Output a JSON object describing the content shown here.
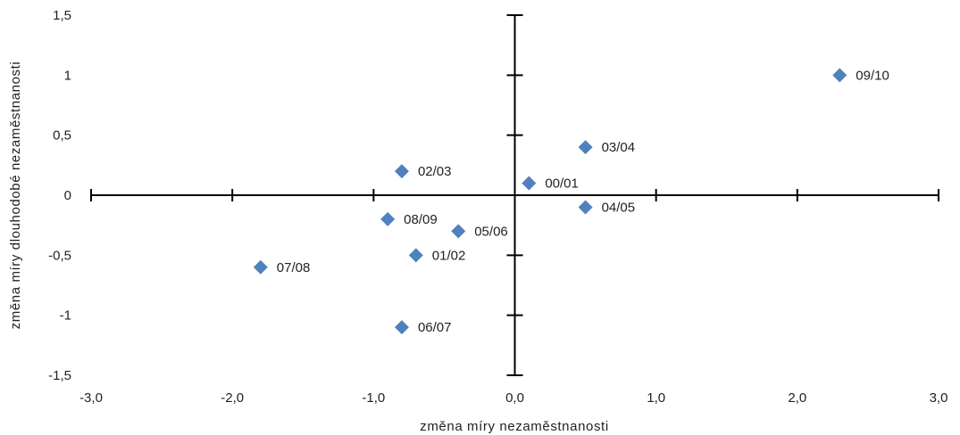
{
  "chart_data": {
    "type": "scatter",
    "xlabel": "změna míry nezaměstnanosti",
    "ylabel": "změna míry dlouhodobé nezaměstnanosti",
    "xlim": [
      -3.0,
      3.0
    ],
    "ylim": [
      -1.5,
      1.5
    ],
    "x_ticks": [
      "-3,0",
      "-2,0",
      "-1,0",
      "0,0",
      "1,0",
      "2,0",
      "3,0"
    ],
    "y_ticks": [
      "-1,5",
      "-1",
      "-0,5",
      "0",
      "0,5",
      "1",
      "1,5"
    ],
    "marker_color": "#4F81BD",
    "grid": false,
    "legend": "none",
    "points": [
      {
        "label": "00/01",
        "x": 0.1,
        "y": 0.1
      },
      {
        "label": "01/02",
        "x": -0.7,
        "y": -0.5
      },
      {
        "label": "02/03",
        "x": -0.8,
        "y": 0.2
      },
      {
        "label": "03/04",
        "x": 0.5,
        "y": 0.4
      },
      {
        "label": "04/05",
        "x": 0.5,
        "y": -0.1
      },
      {
        "label": "05/06",
        "x": -0.4,
        "y": -0.3
      },
      {
        "label": "06/07",
        "x": -0.8,
        "y": -1.1
      },
      {
        "label": "07/08",
        "x": -1.8,
        "y": -0.6
      },
      {
        "label": "08/09",
        "x": -0.9,
        "y": -0.2
      },
      {
        "label": "09/10",
        "x": 2.3,
        "y": 1.0
      }
    ]
  }
}
